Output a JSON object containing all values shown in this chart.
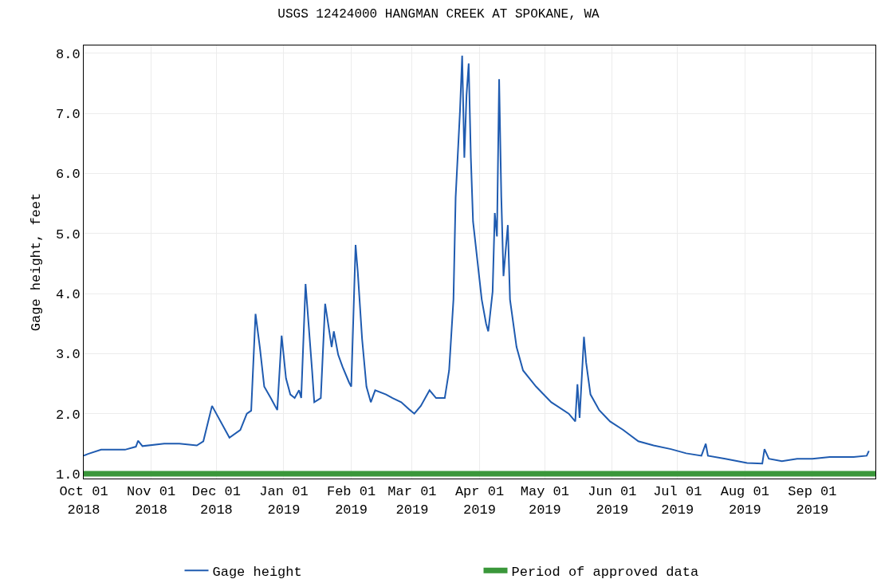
{
  "chart_data": {
    "type": "line",
    "title": "USGS 12424000 HANGMAN CREEK AT SPOKANE, WA",
    "ylabel": "Gage height, feet",
    "xlim": [
      "2018-10-01",
      "2019-09-30"
    ],
    "xticks": [
      {
        "value": "2018-10-01",
        "label": "Oct 01\n2018"
      },
      {
        "value": "2018-11-01",
        "label": "Nov 01\n2018"
      },
      {
        "value": "2018-12-01",
        "label": "Dec 01\n2018"
      },
      {
        "value": "2019-01-01",
        "label": "Jan 01\n2019"
      },
      {
        "value": "2019-02-01",
        "label": "Feb 01\n2019"
      },
      {
        "value": "2019-03-01",
        "label": "Mar 01\n2019"
      },
      {
        "value": "2019-04-01",
        "label": "Apr 01\n2019"
      },
      {
        "value": "2019-05-01",
        "label": "May 01\n2019"
      },
      {
        "value": "2019-06-01",
        "label": "Jun 01\n2019"
      },
      {
        "value": "2019-07-01",
        "label": "Jul 01\n2019"
      },
      {
        "value": "2019-08-01",
        "label": "Aug 01\n2019"
      },
      {
        "value": "2019-09-01",
        "label": "Sep 01\n2019"
      }
    ],
    "ylim": [
      0.92,
      8.13
    ],
    "yticks": [
      {
        "value": 1,
        "label": "1.0"
      },
      {
        "value": 2,
        "label": "2.0"
      },
      {
        "value": 3,
        "label": "3.0"
      },
      {
        "value": 4,
        "label": "4.0"
      },
      {
        "value": 5,
        "label": "5.0"
      },
      {
        "value": 6,
        "label": "6.0"
      },
      {
        "value": 7,
        "label": "7.0"
      },
      {
        "value": 8,
        "label": "8.0"
      }
    ],
    "grid": true,
    "legend": "bottom",
    "marker": "none",
    "line_style": "solid",
    "series": [
      {
        "name": "Gage height",
        "color": "#1f5bb0",
        "x": [
          "2018-10-01",
          "2018-10-03",
          "2018-10-09",
          "2018-10-20",
          "2018-10-25",
          "2018-10-26",
          "2018-10-28",
          "2018-11-07",
          "2018-11-14",
          "2018-11-22",
          "2018-11-25",
          "2018-11-29",
          "2018-12-07",
          "2018-12-12",
          "2018-12-15",
          "2018-12-17",
          "2018-12-19",
          "2018-12-21",
          "2018-12-23",
          "2018-12-26",
          "2018-12-29",
          "2018-12-31",
          "2019-01-02",
          "2019-01-04",
          "2019-01-06",
          "2019-01-08",
          "2019-01-09",
          "2019-01-11",
          "2019-01-14",
          "2019-01-15",
          "2019-01-18",
          "2019-01-20",
          "2019-01-23",
          "2019-01-24",
          "2019-01-26",
          "2019-01-28",
          "2019-01-31",
          "2019-02-01",
          "2019-02-03",
          "2019-02-04",
          "2019-02-06",
          "2019-02-08",
          "2019-02-10",
          "2019-02-12",
          "2019-02-17",
          "2019-02-20",
          "2019-02-24",
          "2019-02-28",
          "2019-03-02",
          "2019-03-05",
          "2019-03-09",
          "2019-03-12",
          "2019-03-16",
          "2019-03-18",
          "2019-03-20",
          "2019-03-21",
          "2019-03-23",
          "2019-03-24",
          "2019-03-25",
          "2019-03-26",
          "2019-03-27",
          "2019-03-28",
          "2019-03-29",
          "2019-03-31",
          "2019-04-02",
          "2019-04-04",
          "2019-04-05",
          "2019-04-07",
          "2019-04-08",
          "2019-04-09",
          "2019-04-10",
          "2019-04-11",
          "2019-04-12",
          "2019-04-14",
          "2019-04-15",
          "2019-04-18",
          "2019-04-21",
          "2019-04-27",
          "2019-05-04",
          "2019-05-12",
          "2019-05-15",
          "2019-05-16",
          "2019-05-17",
          "2019-05-19",
          "2019-05-20",
          "2019-05-22",
          "2019-05-26",
          "2019-05-31",
          "2019-06-06",
          "2019-06-13",
          "2019-06-20",
          "2019-06-28",
          "2019-07-05",
          "2019-07-12",
          "2019-07-14",
          "2019-07-15",
          "2019-07-23",
          "2019-08-02",
          "2019-08-09",
          "2019-08-10",
          "2019-08-12",
          "2019-08-18",
          "2019-08-25",
          "2019-09-01",
          "2019-09-09",
          "2019-09-20",
          "2019-09-26",
          "2019-09-27"
        ],
        "values": [
          1.3,
          1.33,
          1.4,
          1.4,
          1.45,
          1.55,
          1.46,
          1.5,
          1.5,
          1.47,
          1.54,
          2.13,
          1.6,
          1.73,
          2.0,
          2.05,
          3.66,
          3.1,
          2.45,
          2.26,
          2.06,
          3.3,
          2.59,
          2.32,
          2.26,
          2.39,
          2.26,
          4.16,
          2.72,
          2.19,
          2.26,
          3.83,
          3.11,
          3.37,
          2.98,
          2.78,
          2.52,
          2.45,
          4.81,
          4.36,
          3.24,
          2.45,
          2.19,
          2.39,
          2.32,
          2.26,
          2.19,
          2.06,
          2.0,
          2.13,
          2.39,
          2.26,
          2.26,
          2.72,
          3.9,
          5.6,
          7.04,
          7.96,
          6.26,
          7.3,
          7.83,
          6.26,
          5.2,
          4.55,
          3.9,
          3.5,
          3.37,
          4.03,
          5.34,
          4.95,
          7.57,
          5.6,
          4.29,
          5.14,
          3.9,
          3.11,
          2.72,
          2.45,
          2.19,
          2.0,
          1.87,
          2.49,
          1.93,
          3.28,
          2.85,
          2.32,
          2.06,
          1.87,
          1.73,
          1.54,
          1.47,
          1.41,
          1.34,
          1.3,
          1.5,
          1.3,
          1.25,
          1.18,
          1.17,
          1.41,
          1.25,
          1.21,
          1.25,
          1.25,
          1.28,
          1.28,
          1.3,
          1.38
        ]
      },
      {
        "name": "Period of approved data",
        "color": "#3a973a",
        "x": [
          "2018-10-01",
          "2019-09-30"
        ],
        "values": [
          1.0,
          1.0
        ]
      }
    ]
  }
}
